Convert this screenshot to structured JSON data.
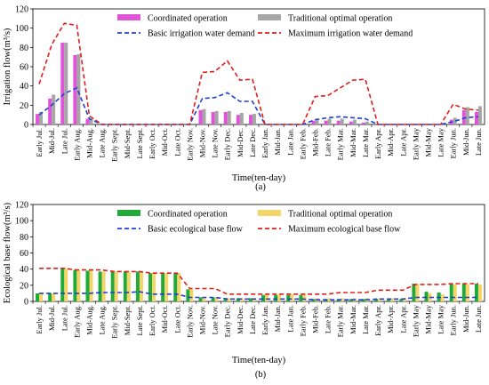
{
  "chart_data": [
    {
      "type": "bar",
      "panel_label": "(a)",
      "xlabel": "Time(ten-day)",
      "ylabel": "Irrigation flow(m³/s)",
      "ylim": [
        0,
        120
      ],
      "yticks": [
        0,
        20,
        40,
        60,
        80,
        100,
        120
      ],
      "grid": false,
      "legend_position": "top",
      "categories": [
        "Early Jul.",
        "Mid-Jul.",
        "Late Jul.",
        "Early Aug.",
        "Mid-Aug.",
        "Late Aug.",
        "Early Sept.",
        "Mid-Sept.",
        "Late Sept.",
        "Early Oct.",
        "Mid-Oct.",
        "Late Oct.",
        "Early Nov.",
        "Mid-Nov.",
        "Late Nov.",
        "Early Dec.",
        "Mid-Dec.",
        "Late Dec.",
        "Early Jan.",
        "Mid-Jan.",
        "Late Jan.",
        "Early Feb.",
        "Mid-Feb.",
        "Late Feb.",
        "Early Mar.",
        "Mid-Mar.",
        "Late Mar.",
        "Early Apr.",
        "Mid-Apr.",
        "Late Apr.",
        "Early May",
        "Mid-May",
        "Late May",
        "Early Jun.",
        "Mid-Jun.",
        "Late Jun."
      ],
      "series": [
        {
          "name": "Coordinated operation",
          "kind": "bar",
          "color": "#e055d8",
          "values": [
            11,
            27,
            85,
            72,
            6,
            0,
            0,
            0,
            0,
            0,
            0,
            0,
            0,
            15,
            13,
            13,
            10,
            10,
            0,
            0,
            0,
            0,
            4,
            4,
            4,
            3,
            2,
            0,
            0,
            0,
            0,
            0,
            0,
            5,
            15,
            13
          ]
        },
        {
          "name": "Traditional optimal operation",
          "kind": "bar",
          "color": "#a6a6a6",
          "values": [
            13,
            31,
            85,
            73,
            6,
            0,
            0,
            0,
            0,
            0,
            0,
            0,
            0,
            16,
            14,
            14,
            12,
            11,
            0,
            0,
            0,
            0,
            6,
            6,
            6,
            5,
            3,
            0,
            0,
            0,
            0,
            0,
            0,
            7,
            18,
            19
          ]
        },
        {
          "name": "Basic irrigation water demand",
          "kind": "line",
          "style": "dashed",
          "color": "#1f3fd6",
          "values": [
            10,
            20,
            32,
            38,
            6,
            0,
            0,
            0,
            0,
            0,
            0,
            0,
            0,
            27,
            28,
            33,
            24,
            24,
            0,
            0,
            0,
            0,
            5,
            7,
            8,
            7,
            6,
            0,
            0,
            0,
            0,
            0,
            0,
            3,
            7,
            8
          ]
        },
        {
          "name": "Maximum irrigation water demand",
          "kind": "line",
          "style": "dashed",
          "color": "#e01e1e",
          "values": [
            42,
            83,
            105,
            103,
            9,
            0,
            0,
            0,
            0,
            0,
            0,
            0,
            0,
            54,
            55,
            66,
            46,
            47,
            0,
            0,
            0,
            0,
            29,
            30,
            38,
            46,
            47,
            0,
            0,
            0,
            0,
            0,
            0,
            21,
            16,
            15
          ]
        }
      ]
    },
    {
      "type": "bar",
      "panel_label": "(b)",
      "xlabel": "Time(ten-day)",
      "ylabel": "Ecological base flow(m³/s)",
      "ylim": [
        0,
        120
      ],
      "yticks": [
        0,
        20,
        40,
        60,
        80,
        100,
        120
      ],
      "grid": false,
      "legend_position": "top",
      "categories": [
        "Early Jul.",
        "Mid-Jul.",
        "Late Jul.",
        "Early Aug.",
        "Mid-Aug.",
        "Late Aug.",
        "Early Sept.",
        "Mid-Sept.",
        "Late Sept.",
        "Early Oct.",
        "Mid-Oct.",
        "Late Oct.",
        "Early Nov.",
        "Mid-Nov.",
        "Late Nov.",
        "Early Dec.",
        "Mid-Dec.",
        "Late Dec.",
        "Early Jan.",
        "Mid-Jan.",
        "Late Jan.",
        "Early Feb.",
        "Mid-Feb.",
        "Late Feb.",
        "Early Mar.",
        "Mid-Mar.",
        "Late Mar.",
        "Early Apr.",
        "Mid-Apr.",
        "Late Apr.",
        "Early May",
        "Mid-May",
        "Late May",
        "Early Jun.",
        "Mid-Jun.",
        "Late Jun."
      ],
      "series": [
        {
          "name": "Coordinated operation",
          "kind": "bar",
          "color": "#1faa3a",
          "values": [
            10,
            10,
            41,
            39,
            38,
            37,
            37,
            37,
            37,
            35,
            35,
            35,
            15,
            5,
            5,
            4,
            4,
            4,
            8,
            8,
            8,
            8,
            3,
            3,
            3,
            3,
            3,
            3,
            3,
            3,
            22,
            12,
            11,
            22,
            22,
            22
          ]
        },
        {
          "name": "Traditional optimal operation",
          "kind": "bar",
          "color": "#f5d468",
          "values": [
            10,
            10,
            41,
            39,
            38,
            37,
            37,
            37,
            37,
            35,
            35,
            35,
            15,
            5,
            5,
            4,
            4,
            4,
            9,
            9,
            9,
            9,
            4,
            4,
            4,
            4,
            4,
            4,
            4,
            4,
            21,
            10,
            9,
            21,
            21,
            21
          ]
        },
        {
          "name": "Basic ecological base flow",
          "kind": "line",
          "style": "dashed",
          "color": "#1f3fd6",
          "values": [
            10,
            10,
            10,
            10,
            10,
            11,
            11,
            11,
            12,
            9,
            9,
            9,
            5,
            5,
            5,
            3,
            3,
            3,
            3,
            3,
            3,
            3,
            2,
            2,
            2,
            2,
            2,
            3,
            3,
            3,
            5,
            5,
            5,
            5,
            5,
            5
          ]
        },
        {
          "name": "Maximum ecological base flow",
          "kind": "line",
          "style": "dashed",
          "color": "#e01e1e",
          "values": [
            41,
            41,
            41,
            39,
            39,
            39,
            37,
            37,
            37,
            35,
            35,
            35,
            16,
            16,
            16,
            9,
            9,
            9,
            9,
            9,
            9,
            9,
            9,
            9,
            11,
            11,
            11,
            14,
            14,
            14,
            21,
            21,
            21,
            22,
            22,
            22
          ]
        }
      ]
    }
  ]
}
